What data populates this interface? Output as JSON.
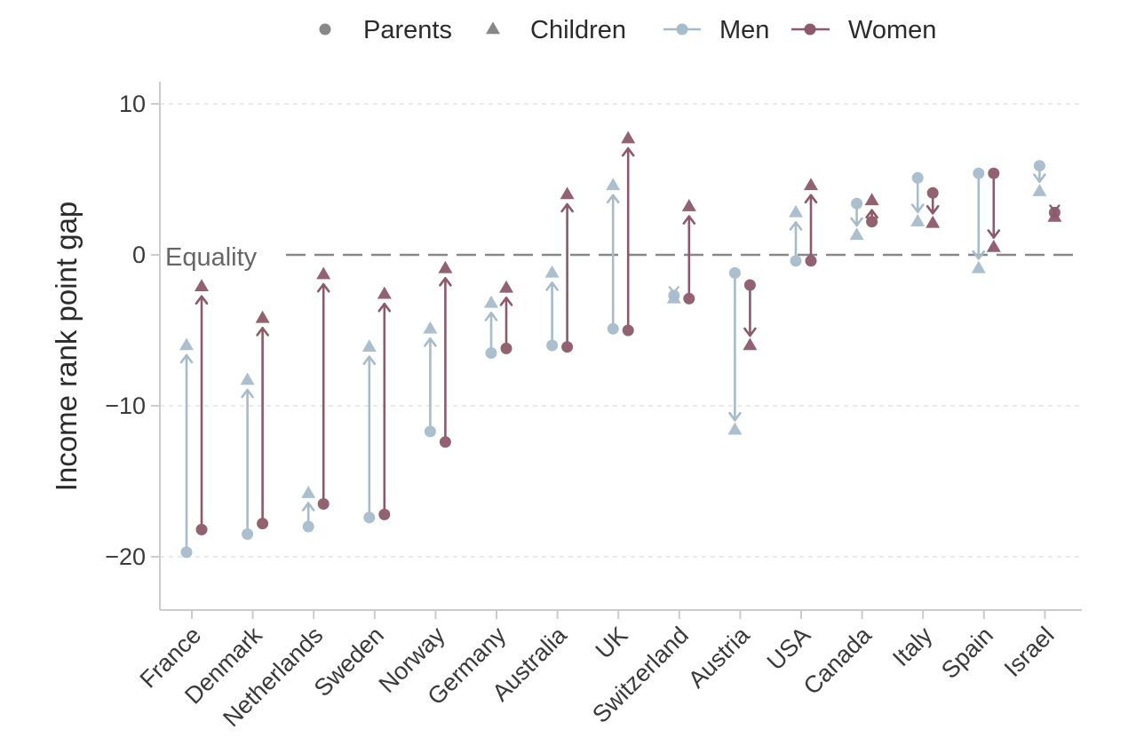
{
  "chart_data": {
    "type": "dumbbell",
    "xlabel": "",
    "ylabel": "Income rank point gap",
    "ylim": [
      -23.5,
      11.5
    ],
    "yticks": [
      10,
      0,
      -10,
      -20
    ],
    "ytick_labels": [
      "10",
      "0",
      "−10",
      "−20"
    ],
    "equality_line": {
      "value": 0,
      "label": "Equality"
    },
    "legend": {
      "position": "top",
      "items": [
        {
          "label": "Parents",
          "marker": "circle"
        },
        {
          "label": "Children",
          "marker": "triangle"
        },
        {
          "label": "Men",
          "marker": "circle-line"
        },
        {
          "label": "Women",
          "marker": "circle-line"
        }
      ]
    },
    "colors": {
      "men": "#a6bccb",
      "women": "#8c5a68",
      "parents_legend": "#888888",
      "children_legend": "#888888",
      "equality": "#888888",
      "grid": "#dddddd",
      "axis": "#cccccc"
    },
    "categories": [
      "France",
      "Denmark",
      "Netherlands",
      "Sweden",
      "Norway",
      "Germany",
      "Australia",
      "UK",
      "Switzerland",
      "Austria",
      "USA",
      "Canada",
      "Italy",
      "Spain",
      "Israel"
    ],
    "series": [
      {
        "name": "Men",
        "parents": [
          -19.7,
          -18.5,
          -18.0,
          -17.4,
          -11.7,
          -6.5,
          -6.0,
          -4.9,
          -2.7,
          -1.2,
          -0.4,
          3.4,
          5.1,
          5.4,
          5.9
        ],
        "children": [
          -6.0,
          -8.3,
          -15.8,
          -6.1,
          -4.9,
          -3.2,
          -1.2,
          4.6,
          -2.9,
          -11.6,
          2.8,
          1.3,
          2.2,
          -0.9,
          4.2
        ]
      },
      {
        "name": "Women",
        "parents": [
          -18.2,
          -17.8,
          -16.5,
          -17.2,
          -12.4,
          -6.2,
          -6.1,
          -5.0,
          -2.9,
          -2.0,
          -0.4,
          2.2,
          4.1,
          5.4,
          2.8
        ],
        "children": [
          -2.1,
          -4.2,
          -1.3,
          -2.6,
          -0.9,
          -2.2,
          4.0,
          7.7,
          3.2,
          -6.0,
          4.6,
          3.6,
          2.1,
          0.5,
          2.5
        ]
      }
    ]
  }
}
